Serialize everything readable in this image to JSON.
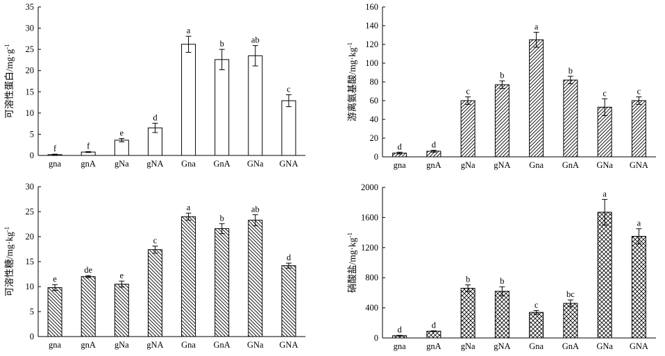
{
  "chart_data": [
    {
      "type": "bar",
      "panel": "top-left",
      "ylabel": "可溶性蛋白/mg·g",
      "ylabel_sup": "-1",
      "categories": [
        "gna",
        "gnA",
        "gNa",
        "gNA",
        "Gna",
        "GnA",
        "GNa",
        "GNA"
      ],
      "values": [
        0.2,
        0.8,
        3.6,
        6.5,
        26.2,
        22.6,
        23.5,
        12.9
      ],
      "errors": [
        0.1,
        0.1,
        0.4,
        1.1,
        1.9,
        2.4,
        2.4,
        1.4
      ],
      "letters": [
        "f",
        "f",
        "e",
        "d",
        "a",
        "b",
        "ab",
        "c"
      ],
      "ylim": [
        0,
        35
      ],
      "yticks": [
        0,
        5,
        10,
        15,
        20,
        25,
        30,
        35
      ],
      "fill": "empty"
    },
    {
      "type": "bar",
      "panel": "top-right",
      "ylabel": "游离氨基酸/mg·kg",
      "ylabel_sup": "-1",
      "categories": [
        "gna",
        "gnA",
        "gNa",
        "gNA",
        "Gna",
        "GnA",
        "GNa",
        "GNA"
      ],
      "values": [
        4,
        6,
        60,
        77,
        125,
        82,
        53,
        60
      ],
      "errors": [
        1,
        1,
        4,
        4,
        8,
        4,
        9,
        4
      ],
      "letters": [
        "d",
        "d",
        "c",
        "b",
        "a",
        "b",
        "c",
        "c"
      ],
      "ylim": [
        0,
        160
      ],
      "yticks": [
        0,
        20,
        40,
        60,
        80,
        100,
        120,
        140,
        160
      ],
      "fill": "forward-diagonal"
    },
    {
      "type": "bar",
      "panel": "bottom-left",
      "ylabel": "可溶性糖/mg·kg",
      "ylabel_sup": "-1",
      "categories": [
        "gna",
        "gnA",
        "gNa",
        "gNA",
        "Gna",
        "GnA",
        "GNa",
        "GNA"
      ],
      "values": [
        9.8,
        12.0,
        10.5,
        17.4,
        24.0,
        21.6,
        23.3,
        14.2
      ],
      "errors": [
        0.6,
        0.2,
        0.6,
        0.7,
        0.7,
        1.0,
        1.1,
        0.5
      ],
      "letters": [
        "e",
        "de",
        "e",
        "c",
        "a",
        "b",
        "ab",
        "d"
      ],
      "ylim": [
        0,
        30
      ],
      "yticks": [
        0,
        5,
        10,
        15,
        20,
        25,
        30
      ],
      "fill": "back-diagonal"
    },
    {
      "type": "bar",
      "panel": "bottom-right",
      "ylabel": "硝酸盐/mg·kg",
      "ylabel_sup": "-1",
      "categories": [
        "gna",
        "gnA",
        "gNa",
        "gNA",
        "Gna",
        "GnA",
        "GNa",
        "GNA"
      ],
      "values": [
        30,
        90,
        660,
        620,
        340,
        460,
        1670,
        1350
      ],
      "errors": [
        5,
        5,
        45,
        60,
        25,
        45,
        170,
        100
      ],
      "letters": [
        "d",
        "d",
        "b",
        "b",
        "c",
        "bc",
        "a",
        "a"
      ],
      "ylim": [
        0,
        2000
      ],
      "yticks": [
        0,
        400,
        800,
        1200,
        1600,
        2000
      ],
      "fill": "crosshatch"
    }
  ]
}
